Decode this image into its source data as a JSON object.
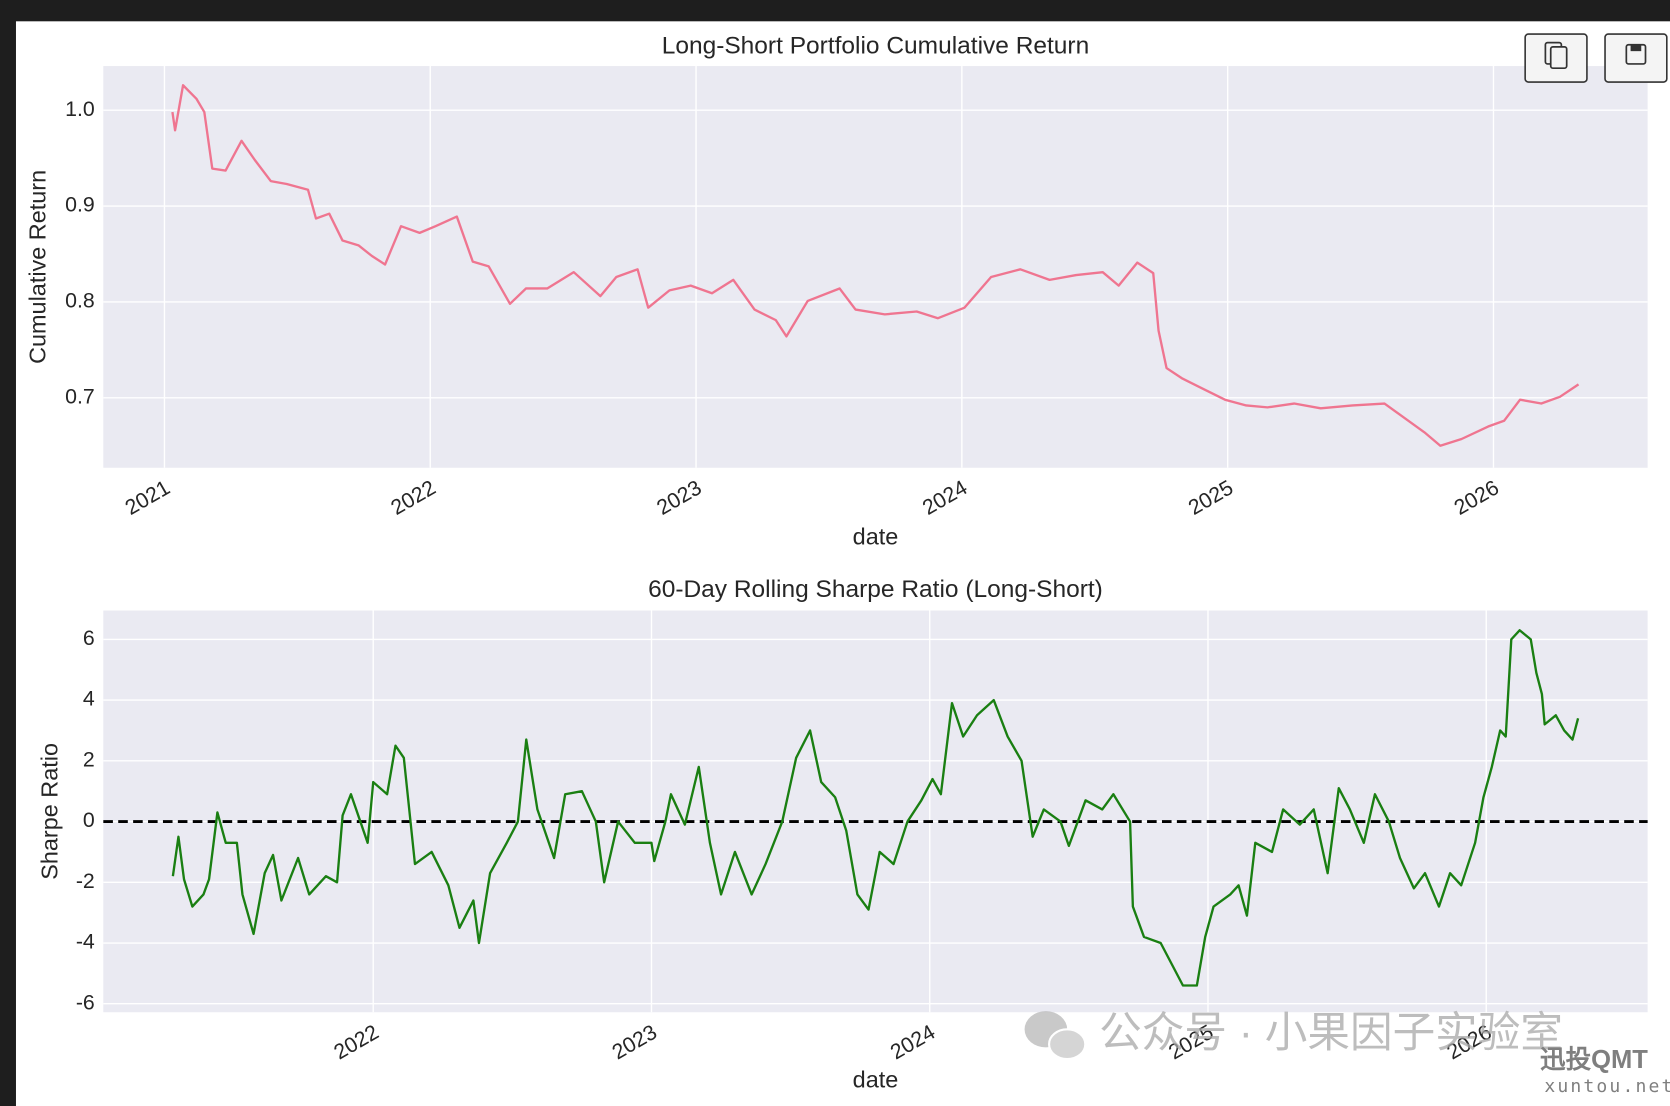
{
  "chart_data": [
    {
      "type": "line",
      "title": "Long-Short Portfolio Cumulative Return",
      "xlabel": "date",
      "ylabel": "Cumulative Return",
      "x": [
        2021.03,
        2021.04,
        2021.07,
        2021.12,
        2021.15,
        2021.18,
        2021.23,
        2021.29,
        2021.34,
        2021.4,
        2021.46,
        2021.54,
        2021.57,
        2021.62,
        2021.67,
        2021.73,
        2021.78,
        2021.83,
        2021.89,
        2021.96,
        2022.02,
        2022.1,
        2022.16,
        2022.22,
        2022.3,
        2022.36,
        2022.44,
        2022.54,
        2022.64,
        2022.7,
        2022.78,
        2022.82,
        2022.9,
        2022.98,
        2023.06,
        2023.14,
        2023.22,
        2023.3,
        2023.34,
        2023.42,
        2023.54,
        2023.6,
        2023.71,
        2023.83,
        2023.91,
        2024.01,
        2024.11,
        2024.22,
        2024.33,
        2024.43,
        2024.53,
        2024.59,
        2024.66,
        2024.72,
        2024.74,
        2024.77,
        2024.83,
        2024.91,
        2024.99,
        2025.07,
        2025.15,
        2025.25,
        2025.35,
        2025.47,
        2025.59,
        2025.68,
        2025.74,
        2025.8,
        2025.88,
        2025.98,
        2026.04,
        2026.1,
        2026.18,
        2026.25,
        2026.32
      ],
      "values": [
        0.998,
        0.979,
        1.026,
        1.012,
        0.998,
        0.939,
        0.937,
        0.968,
        0.948,
        0.926,
        0.923,
        0.917,
        0.887,
        0.892,
        0.864,
        0.859,
        0.848,
        0.839,
        0.879,
        0.872,
        0.879,
        0.889,
        0.842,
        0.837,
        0.798,
        0.814,
        0.814,
        0.831,
        0.806,
        0.826,
        0.834,
        0.794,
        0.812,
        0.817,
        0.809,
        0.823,
        0.792,
        0.781,
        0.764,
        0.801,
        0.814,
        0.792,
        0.787,
        0.79,
        0.783,
        0.794,
        0.826,
        0.834,
        0.823,
        0.828,
        0.831,
        0.817,
        0.841,
        0.83,
        0.77,
        0.731,
        0.72,
        0.709,
        0.698,
        0.692,
        0.69,
        0.694,
        0.689,
        0.692,
        0.694,
        0.676,
        0.664,
        0.65,
        0.657,
        0.67,
        0.676,
        0.698,
        0.694,
        0.701,
        0.714
      ],
      "color": "#ef7590",
      "xlim": [
        2020.77,
        2026.58
      ],
      "xticks": [
        2021,
        2022,
        2023,
        2024,
        2025,
        2026
      ],
      "ylim": [
        0.627,
        1.046
      ],
      "yticks": [
        0.7,
        0.8,
        0.9,
        {
          "value": 1,
          "label": "1.0"
        }
      ],
      "grid": true
    },
    {
      "type": "line",
      "title": "60-Day Rolling Sharpe Ratio (Long-Short)",
      "xlabel": "date",
      "ylabel": "Sharpe Ratio",
      "x": [
        2021.28,
        2021.3,
        2021.32,
        2021.35,
        2021.39,
        2021.41,
        2021.44,
        2021.47,
        2021.51,
        2021.53,
        2021.57,
        2021.61,
        2021.64,
        2021.67,
        2021.73,
        2021.77,
        2021.83,
        2021.87,
        2021.89,
        2021.92,
        2021.98,
        2022.0,
        2022.05,
        2022.08,
        2022.11,
        2022.15,
        2022.21,
        2022.27,
        2022.31,
        2022.36,
        2022.38,
        2022.42,
        2022.48,
        2022.52,
        2022.55,
        2022.59,
        2022.65,
        2022.69,
        2022.75,
        2022.8,
        2022.83,
        2022.88,
        2022.94,
        2023.0,
        2023.01,
        2023.05,
        2023.07,
        2023.12,
        2023.17,
        2023.21,
        2023.25,
        2023.3,
        2023.36,
        2023.41,
        2023.47,
        2023.52,
        2023.57,
        2023.61,
        2023.66,
        2023.7,
        2023.74,
        2023.78,
        2023.82,
        2023.87,
        2023.92,
        2023.97,
        2024.01,
        2024.04,
        2024.08,
        2024.12,
        2024.17,
        2024.23,
        2024.28,
        2024.33,
        2024.37,
        2024.41,
        2024.47,
        2024.5,
        2024.56,
        2024.62,
        2024.66,
        2024.72,
        2024.73,
        2024.77,
        2024.83,
        2024.87,
        2024.91,
        2024.96,
        2024.99,
        2025.02,
        2025.08,
        2025.11,
        2025.14,
        2025.17,
        2025.23,
        2025.27,
        2025.33,
        2025.38,
        2025.43,
        2025.47,
        2025.51,
        2025.56,
        2025.6,
        2025.65,
        2025.69,
        2025.74,
        2025.78,
        2025.83,
        2025.87,
        2025.91,
        2025.96,
        2025.99,
        2026.02,
        2026.05,
        2026.07,
        2026.09,
        2026.12,
        2026.16,
        2026.18,
        2026.2,
        2026.21,
        2026.25,
        2026.28,
        2026.31,
        2026.33
      ],
      "values": [
        -1.8,
        -0.5,
        -1.9,
        -2.8,
        -2.4,
        -1.9,
        0.3,
        -0.7,
        -0.7,
        -2.4,
        -3.7,
        -1.7,
        -1.1,
        -2.6,
        -1.2,
        -2.4,
        -1.8,
        -2.0,
        0.2,
        0.9,
        -0.7,
        1.3,
        0.9,
        2.5,
        2.1,
        -1.4,
        -1.0,
        -2.1,
        -3.5,
        -2.6,
        -4.0,
        -1.7,
        -0.7,
        0.0,
        2.7,
        0.4,
        -1.2,
        0.9,
        1.0,
        0.0,
        -2.0,
        0.0,
        -0.7,
        -0.7,
        -1.3,
        0.0,
        0.9,
        -0.1,
        1.8,
        -0.7,
        -2.4,
        -1.0,
        -2.4,
        -1.4,
        0.0,
        2.1,
        3.0,
        1.3,
        0.8,
        -0.3,
        -2.4,
        -2.9,
        -1.0,
        -1.4,
        0.0,
        0.7,
        1.4,
        0.9,
        3.9,
        2.8,
        3.5,
        4.0,
        2.8,
        2.0,
        -0.5,
        0.4,
        0.0,
        -0.8,
        0.7,
        0.4,
        0.9,
        0.0,
        -2.8,
        -3.8,
        -4.0,
        -4.7,
        -5.4,
        -5.4,
        -3.8,
        -2.8,
        -2.4,
        -2.1,
        -3.1,
        -0.7,
        -1.0,
        0.4,
        -0.1,
        0.4,
        -1.7,
        1.1,
        0.4,
        -0.7,
        0.9,
        0.0,
        -1.2,
        -2.2,
        -1.7,
        -2.8,
        -1.7,
        -2.1,
        -0.7,
        0.8,
        1.8,
        3.0,
        2.8,
        6.0,
        6.3,
        6.0,
        4.9,
        4.2,
        3.2,
        3.5,
        3.0,
        2.7,
        3.4
      ],
      "color": "#1a7f12",
      "hline": 0,
      "hline_color": "#000000",
      "xlim": [
        2021.03,
        2026.58
      ],
      "xticks": [
        2022,
        2023,
        2024,
        2025,
        2026
      ],
      "ylim": [
        -6.28,
        6.95
      ],
      "yticks": [
        -6,
        -4,
        -2,
        0,
        2,
        4,
        6
      ],
      "grid": true
    }
  ],
  "watermark": {
    "text": "公众号 · 小果因子实验室",
    "logo": "迅投QMT",
    "url": "xuntou.net"
  }
}
